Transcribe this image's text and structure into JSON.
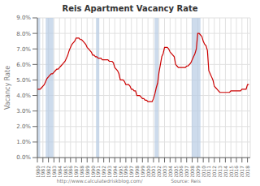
{
  "chart_data": {
    "type": "line",
    "title": "Reis Apartment Vacancy Rate",
    "ylabel": "Vacancy Rate",
    "annotations": [
      "http://www.calculatedriskblog.com/",
      "Source: Reis"
    ],
    "color": "#cc0000",
    "grid": true,
    "recession_color": "#b8cce4",
    "recessions": [
      [
        1980.0,
        1980.5
      ],
      [
        1981.5,
        1982.9
      ],
      [
        1990.6,
        1991.2
      ],
      [
        2001.2,
        2001.9
      ],
      [
        2007.9,
        2009.5
      ]
    ],
    "xlim": [
      1980,
      2018.5
    ],
    "xticks": [
      1980,
      1981,
      1982,
      1983,
      1984,
      1985,
      1986,
      1987,
      1988,
      1989,
      1990,
      1991,
      1992,
      1993,
      1994,
      1995,
      1996,
      1997,
      1998,
      1999,
      2000,
      2001,
      2002,
      2003,
      2004,
      2005,
      2006,
      2007,
      2008,
      2009,
      2010,
      2011,
      2012,
      2013,
      2014,
      2015,
      2016,
      2017,
      2018
    ],
    "ylim": [
      0.0,
      0.09
    ],
    "yticks": [
      {
        "value": 0.0,
        "label": "0.0%"
      },
      {
        "value": 0.01,
        "label": "1.0%"
      },
      {
        "value": 0.02,
        "label": "2.0%"
      },
      {
        "value": 0.03,
        "label": "3.0%"
      },
      {
        "value": 0.04,
        "label": "4.0%"
      },
      {
        "value": 0.05,
        "label": "5.0%"
      },
      {
        "value": 0.06,
        "label": "6.0%"
      },
      {
        "value": 0.07,
        "label": "7.0%"
      },
      {
        "value": 0.08,
        "label": "8.0%"
      },
      {
        "value": 0.09,
        "label": "9.0%"
      }
    ],
    "x": [
      1980,
      1980.25,
      1980.5,
      1980.75,
      1981,
      1981.25,
      1981.5,
      1981.75,
      1982,
      1982.25,
      1982.5,
      1982.75,
      1983,
      1983.25,
      1983.5,
      1983.75,
      1984,
      1984.25,
      1984.5,
      1984.75,
      1985,
      1985.25,
      1985.5,
      1985.75,
      1986,
      1986.25,
      1986.5,
      1986.75,
      1987,
      1987.25,
      1987.5,
      1987.75,
      1988,
      1988.25,
      1988.5,
      1988.75,
      1989,
      1989.25,
      1989.5,
      1989.75,
      1990,
      1990.25,
      1990.5,
      1990.75,
      1991,
      1991.25,
      1991.5,
      1991.75,
      1992,
      1992.25,
      1992.5,
      1992.75,
      1993,
      1993.25,
      1993.5,
      1993.75,
      1994,
      1994.25,
      1994.5,
      1994.75,
      1995,
      1995.25,
      1995.5,
      1995.75,
      1996,
      1996.25,
      1996.5,
      1996.75,
      1997,
      1997.25,
      1997.5,
      1997.75,
      1998,
      1998.25,
      1998.5,
      1998.75,
      1999,
      1999.25,
      1999.5,
      1999.75,
      2000,
      2000.25,
      2000.5,
      2000.75,
      2001,
      2001.25,
      2001.5,
      2001.75,
      2002,
      2002.25,
      2002.5,
      2002.75,
      2003,
      2003.25,
      2003.5,
      2003.75,
      2004,
      2004.25,
      2004.5,
      2004.75,
      2005,
      2005.25,
      2005.5,
      2005.75,
      2006,
      2006.25,
      2006.5,
      2006.75,
      2007,
      2007.25,
      2007.5,
      2007.75,
      2008,
      2008.25,
      2008.5,
      2008.75,
      2009,
      2009.25,
      2009.5,
      2009.75,
      2010,
      2010.25,
      2010.5,
      2010.75,
      2011,
      2011.25,
      2011.5,
      2011.75,
      2012,
      2012.25,
      2012.5,
      2012.75,
      2013,
      2013.25,
      2013.5,
      2013.75,
      2014,
      2014.25,
      2014.5,
      2014.75,
      2015,
      2015.25,
      2015.5,
      2015.75,
      2016,
      2016.25,
      2016.5,
      2016.75,
      2017,
      2017.25,
      2017.5,
      2017.75,
      2018,
      2018.25
    ],
    "values": [
      0.044,
      0.044,
      0.044,
      0.045,
      0.046,
      0.047,
      0.049,
      0.051,
      0.052,
      0.053,
      0.054,
      0.054,
      0.055,
      0.056,
      0.057,
      0.057,
      0.058,
      0.059,
      0.06,
      0.061,
      0.062,
      0.064,
      0.066,
      0.069,
      0.071,
      0.073,
      0.074,
      0.075,
      0.077,
      0.077,
      0.077,
      0.076,
      0.076,
      0.075,
      0.074,
      0.073,
      0.071,
      0.07,
      0.069,
      0.068,
      0.066,
      0.066,
      0.065,
      0.065,
      0.064,
      0.064,
      0.064,
      0.063,
      0.063,
      0.063,
      0.063,
      0.063,
      0.062,
      0.062,
      0.062,
      0.061,
      0.058,
      0.057,
      0.056,
      0.054,
      0.05,
      0.05,
      0.05,
      0.049,
      0.047,
      0.047,
      0.047,
      0.046,
      0.044,
      0.044,
      0.043,
      0.043,
      0.04,
      0.04,
      0.04,
      0.039,
      0.038,
      0.038,
      0.037,
      0.037,
      0.036,
      0.036,
      0.036,
      0.036,
      0.038,
      0.041,
      0.045,
      0.048,
      0.055,
      0.06,
      0.065,
      0.067,
      0.071,
      0.071,
      0.071,
      0.07,
      0.068,
      0.067,
      0.066,
      0.065,
      0.06,
      0.059,
      0.058,
      0.058,
      0.058,
      0.058,
      0.058,
      0.058,
      0.059,
      0.059,
      0.06,
      0.061,
      0.063,
      0.065,
      0.067,
      0.07,
      0.08,
      0.08,
      0.079,
      0.078,
      0.075,
      0.073,
      0.072,
      0.069,
      0.056,
      0.054,
      0.052,
      0.05,
      0.046,
      0.045,
      0.044,
      0.043,
      0.042,
      0.042,
      0.042,
      0.042,
      0.042,
      0.042,
      0.042,
      0.042,
      0.043,
      0.043,
      0.043,
      0.043,
      0.043,
      0.043,
      0.043,
      0.043,
      0.044,
      0.044,
      0.044,
      0.044,
      0.047,
      0.047
    ]
  }
}
